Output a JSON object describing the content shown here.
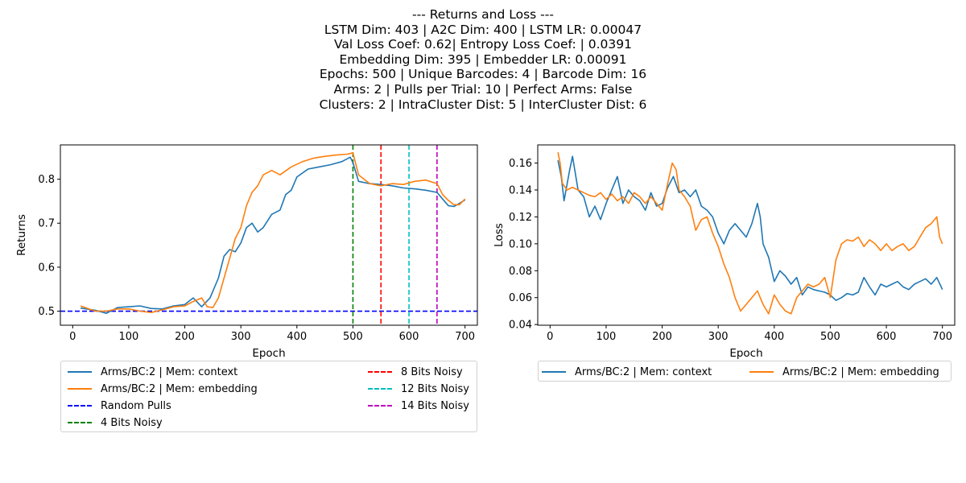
{
  "figure": {
    "title_lines": [
      "--- Returns and Loss ---",
      "LSTM Dim: 403 | A2C Dim: 400 | LSTM LR: 0.00047",
      " Val Loss Coef: 0.62| Entropy Loss Coef: | 0.0391",
      "Embedding Dim: 395 | Embedder LR: 0.00091",
      "Epochs: 500 | Unique Barcodes: 4 | Barcode Dim: 16",
      "Arms: 2 | Pulls per Trial: 10 | Perfect Arms: False",
      "Clusters: 2 | IntraCluster Dist: 5 | InterCluster Dist: 6"
    ]
  },
  "chart_data": [
    {
      "type": "line",
      "xlabel": "Epoch",
      "ylabel": "Returns",
      "xlim": [
        -22,
        722
      ],
      "ylim": [
        0.468,
        0.878
      ],
      "xticks": [
        0,
        100,
        200,
        300,
        400,
        500,
        600,
        700
      ],
      "yticks": [
        0.5,
        0.6,
        0.7,
        0.8
      ],
      "ytick_labels": [
        "0.5",
        "0.6",
        "0.7",
        "0.8"
      ],
      "series": [
        {
          "name": "Arms/BC:2 | Mem: context",
          "color": "#1f77b4",
          "x": [
            14,
            40,
            60,
            80,
            100,
            120,
            140,
            160,
            180,
            200,
            215,
            230,
            245,
            260,
            270,
            280,
            290,
            300,
            310,
            320,
            330,
            340,
            355,
            370,
            380,
            390,
            400,
            420,
            440,
            460,
            480,
            495,
            500,
            510,
            530,
            550,
            570,
            590,
            610,
            630,
            650,
            660,
            670,
            680,
            690,
            700
          ],
          "y": [
            0.507,
            0.502,
            0.495,
            0.508,
            0.51,
            0.512,
            0.506,
            0.505,
            0.512,
            0.515,
            0.53,
            0.51,
            0.53,
            0.575,
            0.625,
            0.64,
            0.635,
            0.655,
            0.69,
            0.7,
            0.68,
            0.69,
            0.72,
            0.73,
            0.765,
            0.775,
            0.805,
            0.823,
            0.828,
            0.833,
            0.84,
            0.85,
            0.838,
            0.795,
            0.79,
            0.788,
            0.785,
            0.78,
            0.778,
            0.775,
            0.77,
            0.755,
            0.74,
            0.738,
            0.745,
            0.753
          ]
        },
        {
          "name": "Arms/BC:2 | Mem: embedding",
          "color": "#ff7f0e",
          "x": [
            14,
            40,
            60,
            80,
            100,
            120,
            140,
            160,
            180,
            200,
            215,
            230,
            240,
            250,
            260,
            270,
            280,
            290,
            300,
            310,
            320,
            330,
            340,
            355,
            370,
            390,
            410,
            430,
            450,
            470,
            490,
            500,
            510,
            530,
            550,
            570,
            590,
            610,
            630,
            650,
            660,
            670,
            680,
            690,
            700
          ],
          "y": [
            0.512,
            0.5,
            0.5,
            0.505,
            0.505,
            0.5,
            0.497,
            0.503,
            0.51,
            0.512,
            0.522,
            0.53,
            0.51,
            0.508,
            0.53,
            0.575,
            0.62,
            0.665,
            0.69,
            0.74,
            0.77,
            0.785,
            0.81,
            0.82,
            0.81,
            0.828,
            0.84,
            0.848,
            0.852,
            0.855,
            0.857,
            0.86,
            0.81,
            0.79,
            0.785,
            0.79,
            0.788,
            0.795,
            0.798,
            0.79,
            0.765,
            0.752,
            0.742,
            0.742,
            0.755
          ]
        },
        {
          "name": "Random Pulls",
          "color": "#0000ff",
          "dashed": true,
          "orientation": "horizontal",
          "value": 0.5
        },
        {
          "name": "4 Bits Noisy",
          "color": "#008000",
          "dashed": true,
          "orientation": "vertical",
          "value": 500
        },
        {
          "name": "8 Bits Noisy",
          "color": "#ff0000",
          "dashed": true,
          "orientation": "vertical",
          "value": 550
        },
        {
          "name": "12 Bits Noisy",
          "color": "#00bfbf",
          "dashed": true,
          "orientation": "vertical",
          "value": 600
        },
        {
          "name": "14 Bits Noisy",
          "color": "#bf00bf",
          "dashed": true,
          "orientation": "vertical",
          "value": 650
        }
      ],
      "legend": {
        "placement": "below",
        "columns": 2
      }
    },
    {
      "type": "line",
      "xlabel": "Epoch",
      "ylabel": "Loss",
      "xlim": [
        -22,
        722
      ],
      "ylim": [
        0.0395,
        0.1735
      ],
      "xticks": [
        0,
        100,
        200,
        300,
        400,
        500,
        600,
        700
      ],
      "yticks": [
        0.04,
        0.06,
        0.08,
        0.1,
        0.12,
        0.14,
        0.16
      ],
      "ytick_labels": [
        "0.04",
        "0.06",
        "0.08",
        "0.10",
        "0.12",
        "0.14",
        "0.16"
      ],
      "series": [
        {
          "name": "Arms/BC:2 | Mem: context",
          "color": "#1f77b4",
          "x": [
            14,
            20,
            25,
            35,
            40,
            50,
            60,
            70,
            80,
            90,
            100,
            110,
            120,
            130,
            140,
            150,
            160,
            170,
            180,
            190,
            200,
            210,
            220,
            230,
            240,
            250,
            260,
            270,
            280,
            290,
            300,
            310,
            320,
            330,
            340,
            350,
            360,
            370,
            375,
            380,
            390,
            400,
            410,
            420,
            430,
            440,
            450,
            460,
            470,
            480,
            490,
            500,
            510,
            520,
            530,
            540,
            550,
            560,
            570,
            580,
            590,
            600,
            610,
            620,
            630,
            640,
            650,
            660,
            670,
            680,
            690,
            700
          ],
          "y": [
            0.162,
            0.15,
            0.132,
            0.155,
            0.165,
            0.14,
            0.135,
            0.12,
            0.128,
            0.118,
            0.13,
            0.14,
            0.15,
            0.13,
            0.14,
            0.135,
            0.132,
            0.125,
            0.138,
            0.128,
            0.13,
            0.142,
            0.15,
            0.138,
            0.14,
            0.135,
            0.14,
            0.128,
            0.125,
            0.12,
            0.108,
            0.1,
            0.11,
            0.115,
            0.11,
            0.105,
            0.115,
            0.13,
            0.12,
            0.1,
            0.09,
            0.072,
            0.08,
            0.076,
            0.07,
            0.075,
            0.062,
            0.068,
            0.066,
            0.065,
            0.064,
            0.062,
            0.058,
            0.06,
            0.063,
            0.062,
            0.064,
            0.075,
            0.068,
            0.062,
            0.07,
            0.068,
            0.07,
            0.072,
            0.068,
            0.066,
            0.07,
            0.072,
            0.074,
            0.07,
            0.075,
            0.066
          ]
        },
        {
          "name": "Arms/BC:2 | Mem: embedding",
          "color": "#ff7f0e",
          "x": [
            14,
            18,
            22,
            30,
            40,
            50,
            60,
            70,
            80,
            90,
            100,
            110,
            120,
            130,
            140,
            150,
            160,
            170,
            180,
            190,
            200,
            210,
            218,
            225,
            230,
            240,
            250,
            260,
            270,
            280,
            290,
            300,
            310,
            320,
            330,
            340,
            350,
            360,
            370,
            380,
            390,
            400,
            410,
            420,
            430,
            440,
            450,
            460,
            470,
            480,
            490,
            500,
            510,
            520,
            530,
            540,
            550,
            560,
            570,
            580,
            590,
            600,
            610,
            620,
            630,
            640,
            650,
            660,
            670,
            680,
            690,
            695,
            700
          ],
          "y": [
            0.168,
            0.16,
            0.145,
            0.14,
            0.142,
            0.14,
            0.138,
            0.136,
            0.135,
            0.138,
            0.133,
            0.137,
            0.132,
            0.135,
            0.13,
            0.138,
            0.135,
            0.13,
            0.135,
            0.13,
            0.125,
            0.145,
            0.16,
            0.155,
            0.14,
            0.135,
            0.128,
            0.11,
            0.118,
            0.12,
            0.108,
            0.098,
            0.085,
            0.075,
            0.06,
            0.05,
            0.055,
            0.06,
            0.065,
            0.055,
            0.048,
            0.062,
            0.055,
            0.05,
            0.048,
            0.06,
            0.065,
            0.07,
            0.068,
            0.07,
            0.075,
            0.06,
            0.088,
            0.1,
            0.103,
            0.102,
            0.105,
            0.098,
            0.103,
            0.1,
            0.095,
            0.1,
            0.095,
            0.098,
            0.1,
            0.095,
            0.098,
            0.105,
            0.112,
            0.115,
            0.12,
            0.105,
            0.1
          ]
        }
      ],
      "legend": {
        "placement": "below",
        "columns": 2
      }
    }
  ]
}
